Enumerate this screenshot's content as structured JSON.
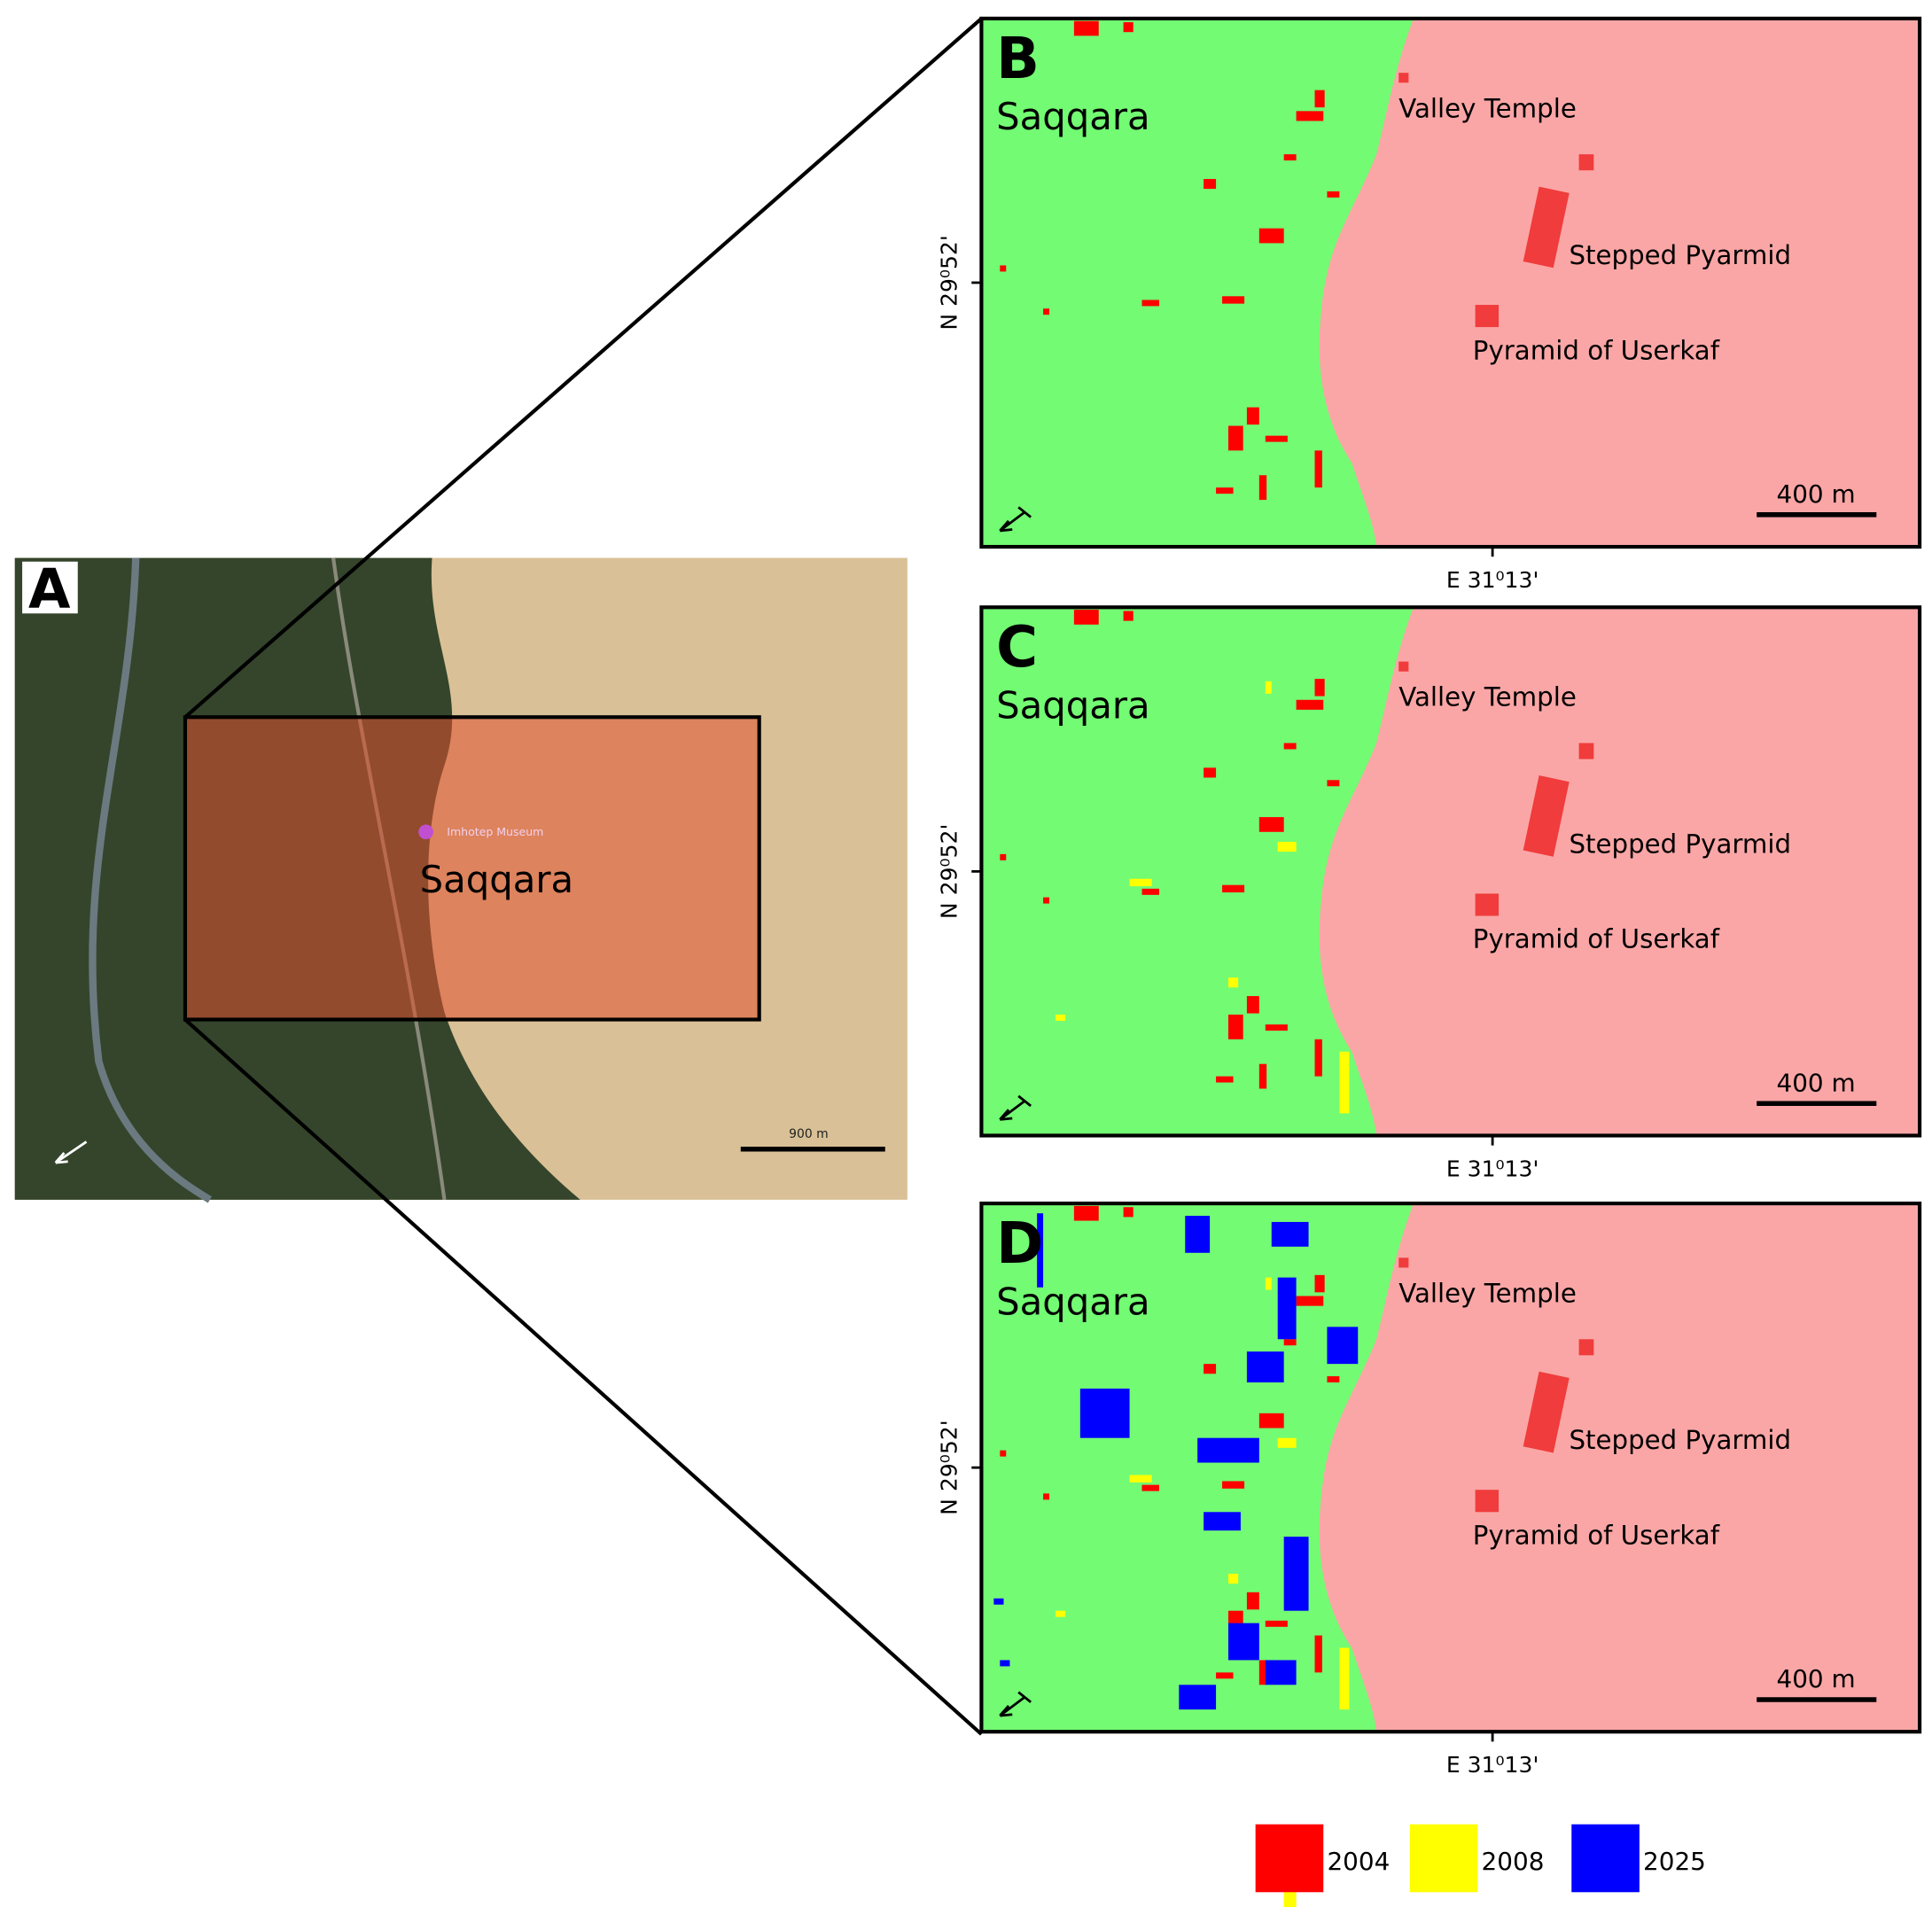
{
  "panels": [
    {
      "label": "A",
      "place": "Saqqara",
      "marker": "Imhotep Museum",
      "scale": "900 m"
    },
    {
      "label": "B",
      "place": "Saqqara",
      "sites": [
        "Valley Temple",
        "Stepped Pyarmid",
        "Pyramid of Userkaf"
      ],
      "scale": "400 m",
      "lat": "N 29⁰52'",
      "lon": "E 31⁰13'"
    },
    {
      "label": "C",
      "place": "Saqqara",
      "sites": [
        "Valley Temple",
        "Stepped Pyarmid",
        "Pyramid of Userkaf"
      ],
      "scale": "400 m",
      "lat": "N 29⁰52'",
      "lon": "E 31⁰13'"
    },
    {
      "label": "D",
      "place": "Saqqara",
      "sites": [
        "Valley Temple",
        "Stepped Pyarmid",
        "Pyramid of Userkaf"
      ],
      "scale": "400 m",
      "lat": "N 29⁰52'",
      "lon": "E 31⁰13'"
    }
  ],
  "legend": [
    {
      "name": "2004",
      "color": "#ff0000"
    },
    {
      "name": "2008",
      "color": "#ffff00"
    },
    {
      "name": "2025",
      "color": "#0000ff"
    }
  ]
}
